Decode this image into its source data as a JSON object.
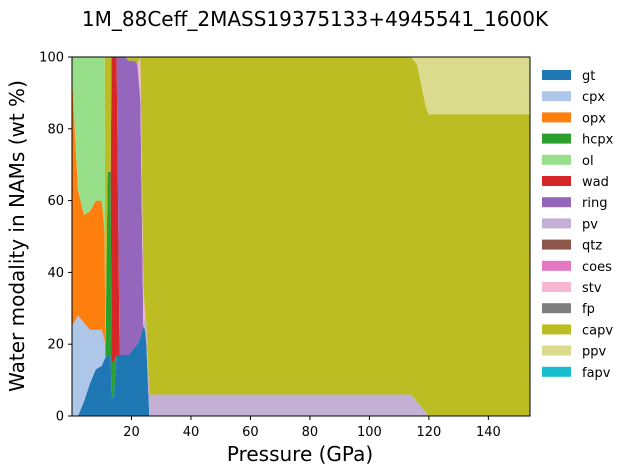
{
  "chart_data": {
    "type": "area",
    "title": "1M_88Ceff_2MASS19375133+4945541_1600K",
    "xlabel": "Pressure (GPa)",
    "ylabel": "Water modality in NAMs (wt %)",
    "xlim": [
      0,
      154
    ],
    "ylim": [
      0,
      100
    ],
    "x_ticks": [
      20,
      40,
      60,
      80,
      100,
      120,
      140
    ],
    "y_ticks": [
      0,
      20,
      40,
      60,
      80,
      100
    ],
    "grid": false,
    "legend_position": "outside-right",
    "x": [
      0,
      2,
      4,
      6,
      8,
      10,
      11,
      11.2,
      12,
      13,
      13.3,
      14,
      15,
      16,
      17,
      18,
      19,
      20,
      21,
      22,
      23,
      24,
      24.6,
      25,
      26,
      40,
      60,
      80,
      100,
      114,
      116,
      118,
      119,
      120,
      122,
      130,
      140,
      154
    ],
    "series": [
      {
        "name": "gt",
        "color": "#1f77b4",
        "values": [
          0,
          0,
          4,
          9,
          13,
          14,
          16,
          16,
          17,
          17,
          5,
          5,
          17,
          17,
          17,
          17,
          17,
          18,
          19,
          20,
          22,
          25,
          24,
          20,
          0,
          0,
          0,
          0,
          0,
          0,
          0,
          0,
          0,
          0,
          0,
          0,
          0,
          0
        ]
      },
      {
        "name": "cpx",
        "color": "#aec7e8",
        "values": [
          25,
          28,
          22,
          15,
          11,
          10,
          5,
          0,
          0,
          0,
          0,
          0,
          0,
          0,
          0,
          0,
          0,
          0,
          0,
          0,
          0,
          0,
          0,
          0,
          0,
          0,
          0,
          0,
          0,
          0,
          0,
          0,
          0,
          0,
          0,
          0,
          0,
          0
        ]
      },
      {
        "name": "opx",
        "color": "#ff7f0e",
        "values": [
          70,
          35,
          30,
          33,
          36,
          36,
          30,
          0,
          0,
          0,
          0,
          0,
          0,
          0,
          0,
          0,
          0,
          0,
          0,
          0,
          0,
          0,
          0,
          0,
          0,
          0,
          0,
          0,
          0,
          0,
          0,
          0,
          0,
          0,
          0,
          0,
          0,
          0
        ]
      },
      {
        "name": "hcpx",
        "color": "#2ca02c",
        "values": [
          0,
          0,
          0,
          0,
          0,
          0,
          0,
          0,
          51,
          51,
          10,
          10,
          0,
          0,
          0,
          0,
          0,
          0,
          0,
          0,
          0,
          0,
          0,
          0,
          0,
          0,
          0,
          0,
          0,
          0,
          0,
          0,
          0,
          0,
          0,
          0,
          0,
          0
        ]
      },
      {
        "name": "ol",
        "color": "#98df8a",
        "values": [
          5,
          37,
          44,
          43,
          40,
          40,
          49,
          0,
          0,
          0,
          0,
          0,
          0,
          0,
          0,
          0,
          0,
          0,
          0,
          0,
          0,
          0,
          0,
          0,
          0,
          0,
          0,
          0,
          0,
          0,
          0,
          0,
          0,
          0,
          0,
          0,
          0,
          0
        ]
      },
      {
        "name": "wad",
        "color": "#d62728",
        "values": [
          0,
          0,
          0,
          0,
          0,
          0,
          0,
          0,
          0,
          0,
          85,
          85,
          83,
          0,
          0,
          0,
          0,
          0,
          0,
          0,
          0,
          0,
          0,
          0,
          0,
          0,
          0,
          0,
          0,
          0,
          0,
          0,
          0,
          0,
          0,
          0,
          0,
          0
        ]
      },
      {
        "name": "ring",
        "color": "#9467bd",
        "values": [
          0,
          0,
          0,
          0,
          0,
          0,
          0,
          0,
          0,
          0,
          0,
          0,
          0,
          83,
          83,
          83,
          82,
          81,
          80,
          78,
          66,
          0,
          0,
          0,
          0,
          0,
          0,
          0,
          0,
          0,
          0,
          0,
          0,
          0,
          0,
          0,
          0,
          0
        ]
      },
      {
        "name": "pv",
        "color": "#c5b0d5",
        "values": [
          0,
          0,
          0,
          0,
          0,
          0,
          0,
          0,
          0,
          0,
          0,
          0,
          0,
          0,
          0,
          0,
          0,
          0,
          0,
          0,
          0,
          0,
          4,
          6,
          6,
          6,
          6,
          6,
          6,
          6,
          4,
          2,
          1,
          0,
          0,
          0,
          0,
          0
        ]
      },
      {
        "name": "qtz",
        "color": "#8c564b",
        "values": [
          0,
          0,
          0,
          0,
          0,
          0,
          0,
          0,
          0,
          0,
          0,
          0,
          0,
          0,
          0,
          0,
          0,
          0,
          0,
          0,
          0,
          0,
          0,
          0,
          0,
          0,
          0,
          0,
          0,
          0,
          0,
          0,
          0,
          0,
          0,
          0,
          0,
          0
        ]
      },
      {
        "name": "coes",
        "color": "#e377c2",
        "values": [
          0,
          0,
          0,
          0,
          0,
          0,
          0,
          0,
          0,
          0,
          0,
          0,
          0,
          0,
          0,
          0,
          0,
          0,
          0,
          0,
          0,
          0,
          0,
          0,
          0,
          0,
          0,
          0,
          0,
          0,
          0,
          0,
          0,
          0,
          0,
          0,
          0,
          0
        ]
      },
      {
        "name": "stv",
        "color": "#f7b6d2",
        "values": [
          0,
          0,
          0,
          0,
          0,
          0,
          0,
          0,
          0,
          0,
          0,
          0,
          0,
          0,
          0,
          0,
          0,
          0,
          0,
          0,
          12,
          11,
          0,
          0,
          0,
          0,
          0,
          0,
          0,
          0,
          0,
          0,
          0,
          0,
          0,
          0,
          0,
          0
        ]
      },
      {
        "name": "fp",
        "color": "#7f7f7f",
        "values": [
          0,
          0,
          0,
          0,
          0,
          0,
          0,
          0,
          0,
          0,
          0,
          0,
          0,
          0,
          0,
          0,
          0,
          0,
          0,
          0,
          0,
          0,
          0,
          0,
          0,
          0,
          0,
          0,
          0,
          0,
          0,
          0,
          0,
          0,
          0,
          0,
          0,
          0
        ]
      },
      {
        "name": "capv",
        "color": "#bcbd22",
        "values": [
          0,
          0,
          0,
          0,
          0,
          0,
          0,
          84,
          32,
          32,
          0,
          0,
          0,
          0,
          0,
          0,
          1,
          1,
          1,
          2,
          0,
          64,
          72,
          74,
          94,
          94,
          94,
          94,
          94,
          94,
          94,
          88,
          85,
          84,
          84,
          84,
          84,
          84
        ]
      },
      {
        "name": "ppv",
        "color": "#dbdb8d",
        "values": [
          0,
          0,
          0,
          0,
          0,
          0,
          0,
          0,
          0,
          0,
          0,
          0,
          0,
          0,
          0,
          0,
          0,
          0,
          0,
          0,
          0,
          0,
          0,
          0,
          0,
          0,
          0,
          0,
          0,
          0,
          2,
          10,
          14,
          16,
          16,
          16,
          16,
          16
        ]
      },
      {
        "name": "fapv",
        "color": "#17becf",
        "values": [
          0,
          0,
          0,
          0,
          0,
          0,
          0,
          0,
          0,
          0,
          0,
          0,
          0,
          0,
          0,
          0,
          0,
          0,
          0,
          0,
          0,
          0,
          0,
          0,
          0,
          0,
          0,
          0,
          0,
          0,
          0,
          0,
          0,
          0,
          0,
          0,
          0,
          0
        ]
      }
    ]
  }
}
